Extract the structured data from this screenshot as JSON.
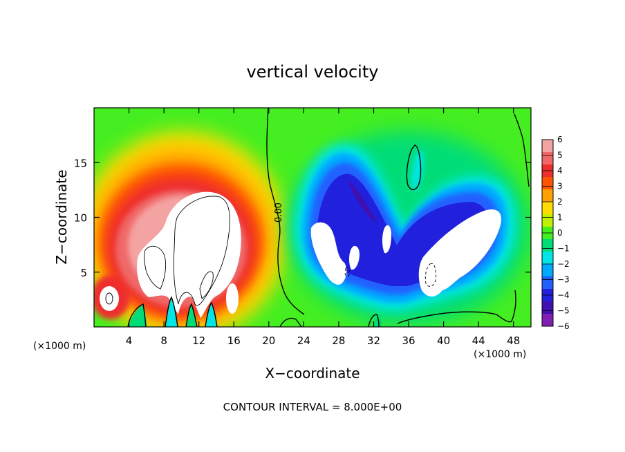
{
  "chart_data": {
    "type": "heatmap",
    "title": "vertical velocity",
    "xlabel": "X−coordinate",
    "ylabel": "Z−coordinate",
    "x_unit_left": "(×1000 m)",
    "x_unit_right": "(×1000 m)",
    "xlim": [
      0,
      50
    ],
    "ylim": [
      0,
      20
    ],
    "x_ticks": [
      4,
      8,
      12,
      16,
      20,
      24,
      28,
      32,
      36,
      40,
      44,
      48
    ],
    "x_tick_labels": [
      "4",
      "8",
      "12",
      "16",
      "20",
      "24",
      "28",
      "32",
      "36",
      "40",
      "44",
      "48"
    ],
    "y_ticks": [
      5,
      10,
      15
    ],
    "y_tick_labels": [
      "5",
      "10",
      "15"
    ],
    "contour_label": "0.00",
    "colorbar": {
      "min": -6,
      "max": 6,
      "tick_labels": [
        "6",
        "5",
        "4",
        "3",
        "2",
        "1",
        "0",
        "−1",
        "−2",
        "−3",
        "−4",
        "−5",
        "−6"
      ],
      "colors": [
        "#f4a3a3",
        "#f06868",
        "#ee2d2d",
        "#ff5500",
        "#ffa000",
        "#ffdd00",
        "#bff000",
        "#44ee20",
        "#00dd77",
        "#00e6e6",
        "#00aaff",
        "#2060ff",
        "#2020dd",
        "#4010b0",
        "#8020b0"
      ]
    },
    "features": [
      {
        "sign": "positive",
        "region": "updraft",
        "x_center": 12,
        "z_center": 9,
        "peak": 6
      },
      {
        "sign": "negative",
        "region": "downdraft",
        "x_center": 38,
        "z_center": 8,
        "peak": -6
      }
    ],
    "footer": "CONTOUR INTERVAL = 8.000E+00"
  }
}
